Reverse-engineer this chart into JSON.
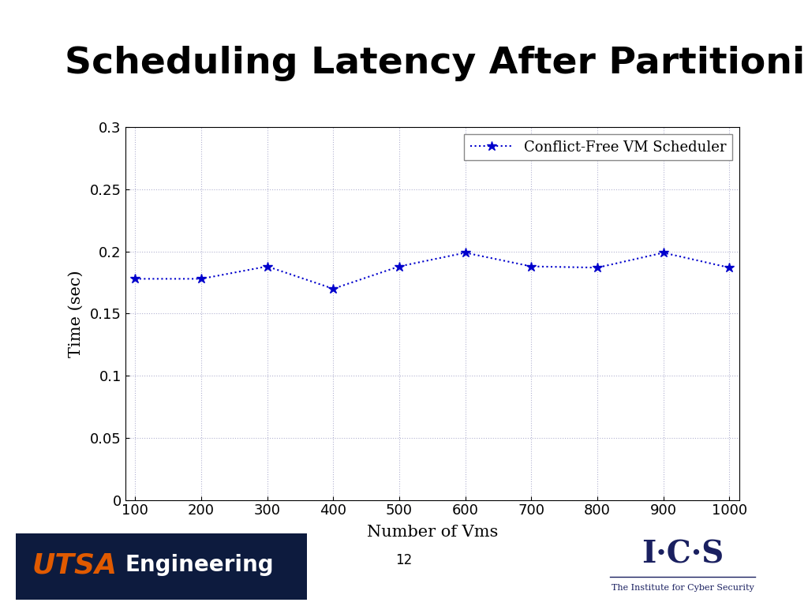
{
  "title": "Scheduling Latency After Partitioning",
  "xlabel": "Number of Vms",
  "ylabel": "Time (sec)",
  "x": [
    100,
    200,
    300,
    400,
    500,
    600,
    700,
    800,
    900,
    1000
  ],
  "y": [
    0.178,
    0.178,
    0.188,
    0.17,
    0.188,
    0.199,
    0.188,
    0.187,
    0.199,
    0.187
  ],
  "line_color": "#0000CC",
  "marker": "*",
  "legend_label": "Conflict-Free VM Scheduler",
  "ylim": [
    0,
    0.3
  ],
  "yticks": [
    0,
    0.05,
    0.1,
    0.15,
    0.2,
    0.25,
    0.3
  ],
  "xticks": [
    100,
    200,
    300,
    400,
    500,
    600,
    700,
    800,
    900,
    1000
  ],
  "page_number": "12",
  "background_color": "#ffffff",
  "title_fontsize": 34,
  "axis_label_fontsize": 15,
  "tick_fontsize": 13,
  "legend_fontsize": 13,
  "utsa_bg": "#1a1a2e",
  "utsa_orange": "#E05A00",
  "ics_color": "#1a2060"
}
